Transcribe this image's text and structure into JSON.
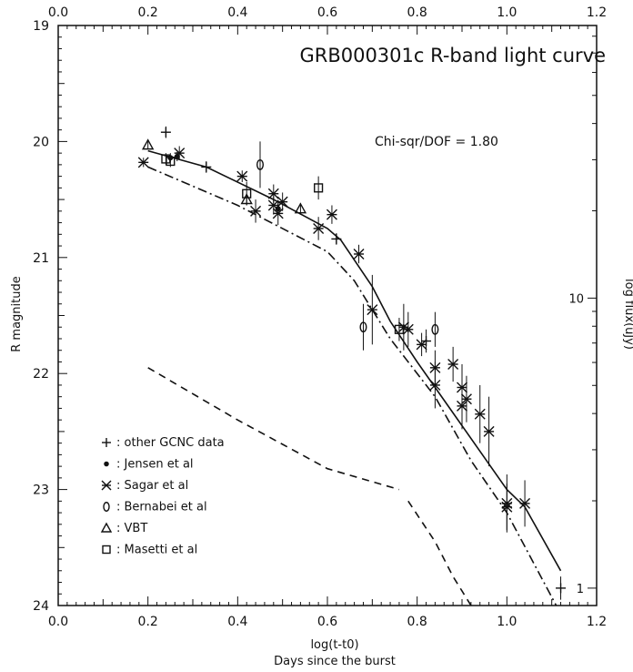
{
  "chart_data": {
    "type": "scatter",
    "title": "GRB000301c R-band light curve",
    "annotation": "Chi-sqr/DOF = 1.80",
    "xlabel": "log(t-t0)",
    "xlabel2": "Days since the burst",
    "ylabel": "R magnitude",
    "ylabel_right": "log flux(uJy)",
    "xlim": [
      0.0,
      1.2
    ],
    "ylim": [
      19,
      24
    ],
    "y_inverted": true,
    "x_ticks": [
      0.0,
      0.2,
      0.4,
      0.6,
      0.8,
      1.0,
      1.2
    ],
    "x_tick_labels": [
      "0.0",
      "0.2",
      "0.4",
      "0.6",
      "0.8",
      "1.0",
      "1.2"
    ],
    "y_ticks": [
      19,
      20,
      21,
      22,
      23,
      24
    ],
    "y_tick_labels": [
      "19",
      "20",
      "21",
      "22",
      "23",
      "24"
    ],
    "right_axis_ticks": [
      {
        "mag": 21.35,
        "label": "10"
      },
      {
        "mag": 23.85,
        "label": "1"
      }
    ],
    "legend_position": "lower-left",
    "legend": [
      {
        "symbol": "plus",
        "label": ": other GCNC data"
      },
      {
        "symbol": "dot",
        "label": ": Jensen et al"
      },
      {
        "symbol": "cross",
        "label": ": Sagar et al"
      },
      {
        "symbol": "diamond",
        "label": ": Bernabei et al"
      },
      {
        "symbol": "triangle",
        "label": ": VBT"
      },
      {
        "symbol": "square",
        "label": ": Masetti et al"
      }
    ],
    "series": [
      {
        "symbol": "plus",
        "points": [
          {
            "x": 0.24,
            "y": 19.92,
            "err": 0.05
          },
          {
            "x": 0.33,
            "y": 20.22,
            "err": 0.05
          },
          {
            "x": 0.62,
            "y": 20.84,
            "err": 0.05
          },
          {
            "x": 0.82,
            "y": 21.72,
            "err": 0.1
          },
          {
            "x": 1.12,
            "y": 23.85,
            "err": 0.1
          }
        ]
      },
      {
        "symbol": "dot",
        "points": [
          {
            "x": 0.25,
            "y": 20.14,
            "err": 0.04
          },
          {
            "x": 0.265,
            "y": 20.13,
            "err": 0.04
          },
          {
            "x": 0.49,
            "y": 20.58,
            "err": 0.05
          }
        ]
      },
      {
        "symbol": "cross",
        "points": [
          {
            "x": 0.19,
            "y": 20.18,
            "err": 0.04
          },
          {
            "x": 0.27,
            "y": 20.1,
            "err": 0.06
          },
          {
            "x": 0.41,
            "y": 20.3,
            "err": 0.05
          },
          {
            "x": 0.44,
            "y": 20.6,
            "err": 0.1
          },
          {
            "x": 0.48,
            "y": 20.45,
            "err": 0.08
          },
          {
            "x": 0.48,
            "y": 20.55,
            "err": 0.08
          },
          {
            "x": 0.49,
            "y": 20.62,
            "err": 0.1
          },
          {
            "x": 0.5,
            "y": 20.52,
            "err": 0.08
          },
          {
            "x": 0.58,
            "y": 20.75,
            "err": 0.1
          },
          {
            "x": 0.61,
            "y": 20.63,
            "err": 0.08
          },
          {
            "x": 0.67,
            "y": 20.97,
            "err": 0.08
          },
          {
            "x": 0.7,
            "y": 21.45,
            "err": 0.3
          },
          {
            "x": 0.77,
            "y": 21.6,
            "err": 0.2
          },
          {
            "x": 0.78,
            "y": 21.62,
            "err": 0.15
          },
          {
            "x": 0.81,
            "y": 21.75,
            "err": 0.1
          },
          {
            "x": 0.84,
            "y": 21.95,
            "err": 0.15
          },
          {
            "x": 0.84,
            "y": 22.1,
            "err": 0.2
          },
          {
            "x": 0.88,
            "y": 21.92,
            "err": 0.15
          },
          {
            "x": 0.9,
            "y": 22.12,
            "err": 0.2
          },
          {
            "x": 0.9,
            "y": 22.28,
            "err": 0.2
          },
          {
            "x": 0.91,
            "y": 22.22,
            "err": 0.2
          },
          {
            "x": 0.94,
            "y": 22.35,
            "err": 0.25
          },
          {
            "x": 0.96,
            "y": 22.5,
            "err": 0.3
          },
          {
            "x": 1.0,
            "y": 23.15,
            "err": 0.2
          },
          {
            "x": 1.0,
            "y": 23.12,
            "err": 0.25
          },
          {
            "x": 1.04,
            "y": 23.12,
            "err": 0.2
          }
        ]
      },
      {
        "symbol": "diamond",
        "points": [
          {
            "x": 0.45,
            "y": 20.2,
            "err": 0.2
          },
          {
            "x": 0.68,
            "y": 21.6,
            "err": 0.2
          },
          {
            "x": 0.84,
            "y": 21.62,
            "err": 0.15
          }
        ]
      },
      {
        "symbol": "triangle",
        "points": [
          {
            "x": 0.2,
            "y": 20.03,
            "err": 0.03
          },
          {
            "x": 0.42,
            "y": 20.5,
            "err": 0.05
          },
          {
            "x": 0.54,
            "y": 20.58,
            "err": 0.05
          }
        ]
      },
      {
        "symbol": "square",
        "points": [
          {
            "x": 0.24,
            "y": 20.15,
            "err": 0.05
          },
          {
            "x": 0.25,
            "y": 20.17,
            "err": 0.05
          },
          {
            "x": 0.42,
            "y": 20.45,
            "err": 0.1
          },
          {
            "x": 0.58,
            "y": 20.4,
            "err": 0.1
          },
          {
            "x": 0.76,
            "y": 21.62,
            "err": 0.1
          }
        ]
      }
    ],
    "model_curves": [
      {
        "style": "solid",
        "points": [
          [
            0.2,
            20.08
          ],
          [
            0.33,
            20.22
          ],
          [
            0.48,
            20.5
          ],
          [
            0.6,
            20.75
          ],
          [
            0.63,
            20.85
          ],
          [
            0.7,
            21.25
          ],
          [
            0.74,
            21.55
          ],
          [
            0.8,
            21.9
          ],
          [
            0.9,
            22.45
          ],
          [
            1.0,
            23.0
          ],
          [
            1.04,
            23.15
          ],
          [
            1.12,
            23.7
          ]
        ]
      },
      {
        "style": "dashdot",
        "points": [
          [
            0.2,
            20.22
          ],
          [
            0.4,
            20.55
          ],
          [
            0.6,
            20.95
          ],
          [
            0.66,
            21.2
          ],
          [
            0.74,
            21.7
          ],
          [
            0.84,
            22.2
          ],
          [
            0.92,
            22.75
          ],
          [
            1.0,
            23.2
          ],
          [
            1.11,
            24.0
          ]
        ]
      },
      {
        "style": "dashed",
        "points": [
          [
            0.2,
            21.95
          ],
          [
            0.4,
            22.4
          ],
          [
            0.6,
            22.82
          ],
          [
            0.76,
            23.0
          ]
        ]
      },
      {
        "style": "dashed",
        "points": [
          [
            0.78,
            23.1
          ],
          [
            0.84,
            23.45
          ],
          [
            0.88,
            23.75
          ],
          [
            0.92,
            24.0
          ]
        ]
      }
    ]
  }
}
